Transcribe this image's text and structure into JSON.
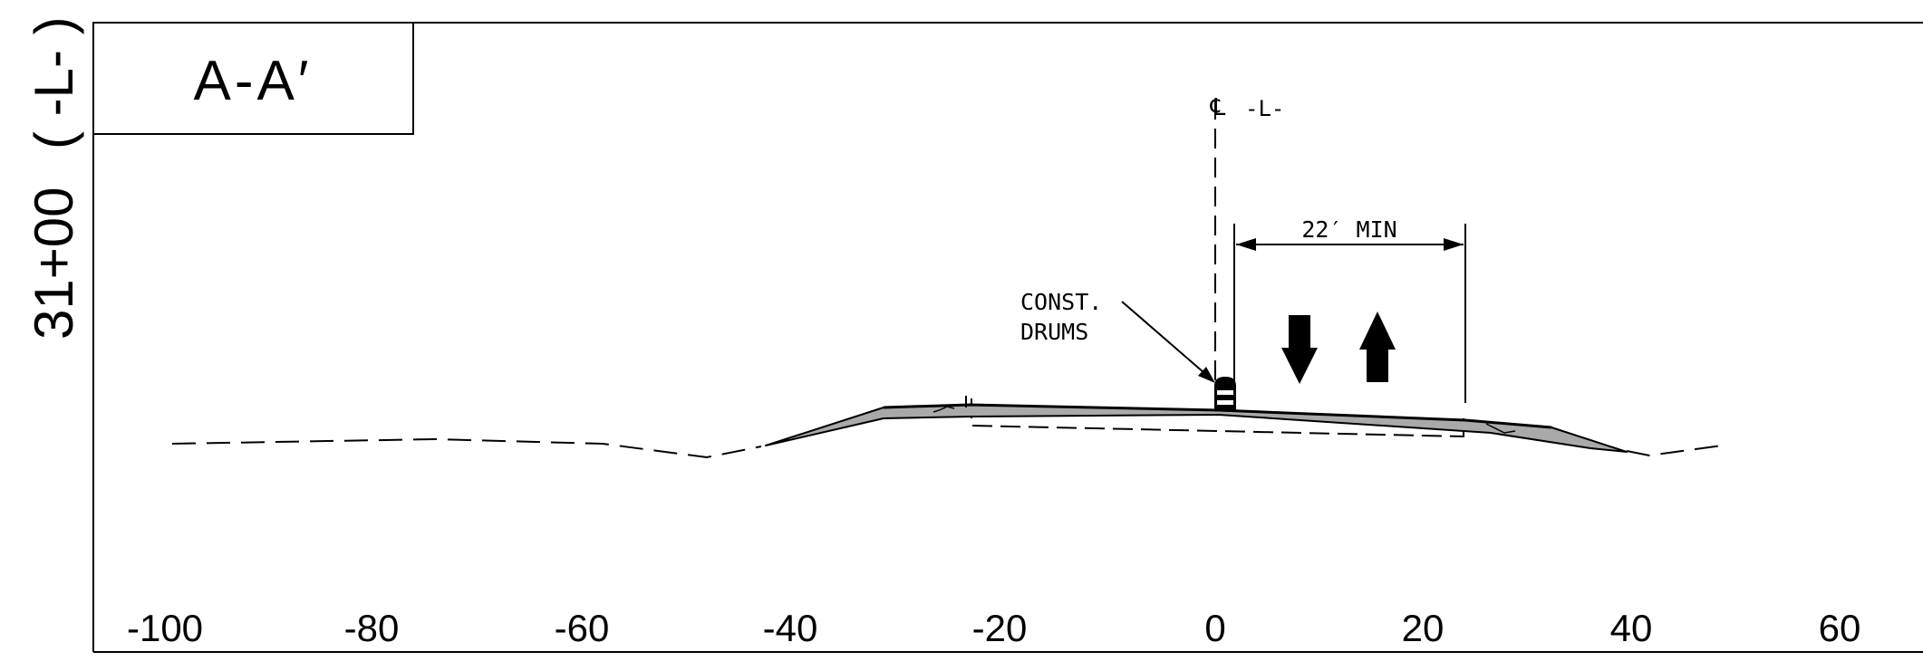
{
  "station": {
    "label": "31+00",
    "line": "( -L- )"
  },
  "section": {
    "label": "A-A′"
  },
  "centerline": {
    "symbol": "℄",
    "label": "-L-"
  },
  "dimension": {
    "label": "22′ MIN"
  },
  "callout": {
    "line1": "CONST.",
    "line2": "DRUMS"
  },
  "traffic": {
    "left_arrow": "arrow-down-icon",
    "right_arrow": "arrow-up-icon"
  },
  "axis": {
    "ticks": [
      "-100",
      "-80",
      "-60",
      "-40",
      "-20",
      "0",
      "20",
      "40",
      "60"
    ]
  },
  "colors": {
    "ink": "#000000",
    "fill": "#a9a9a9",
    "background": "#ffffff"
  }
}
